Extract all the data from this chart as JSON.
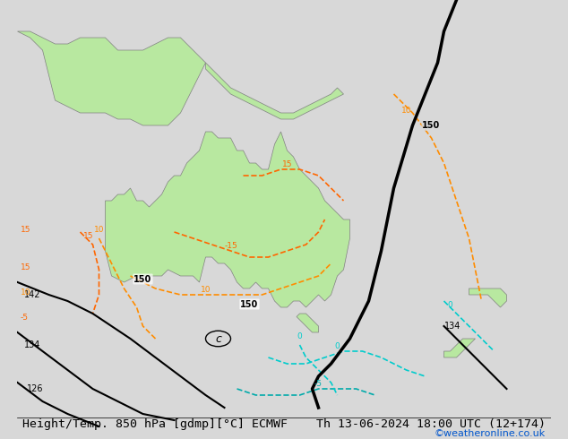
{
  "title_left": "Height/Temp. 850 hPa [gdmp][°C] ECMWF",
  "title_right": "Th 13-06-2024 18:00 UTC (12+174)",
  "watermark": "©weatheronline.co.uk",
  "bg_color": "#d8d8d8",
  "land_color": "#b8e8a0",
  "ocean_color": "#d8d8d8",
  "title_fontsize": 9.5,
  "watermark_color": "#0055cc",
  "fig_width": 6.34,
  "fig_height": 4.9,
  "dpi": 100
}
